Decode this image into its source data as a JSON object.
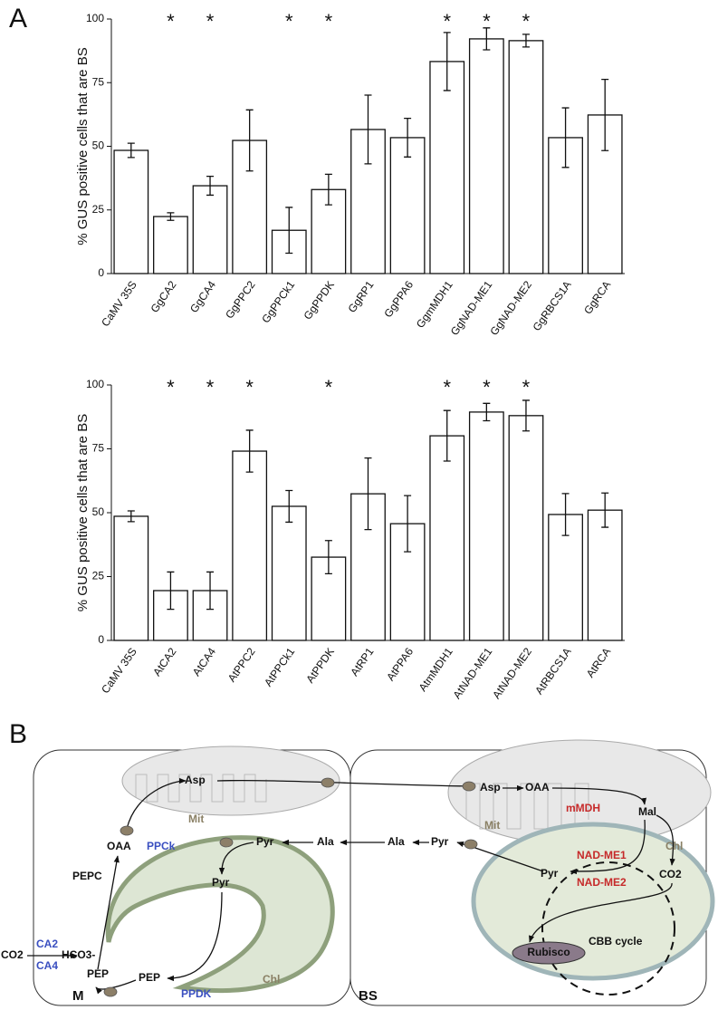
{
  "chart_data": [
    {
      "type": "bar",
      "panel": "A",
      "ylabel": "% GUS positive cells that are BS",
      "categories": [
        "CaMV 35S",
        "GgCA2",
        "GgCA4",
        "GgPPC2",
        "GgPPCk1",
        "GgPPDK",
        "GgRP1",
        "GgPPA6",
        "GgmMDH1",
        "GgNAD-ME1",
        "GgNAD-ME2",
        "GgRBCS1A",
        "GgRCA"
      ],
      "values": [
        48.4,
        22.4,
        34.5,
        52.3,
        17,
        33,
        56.6,
        53.4,
        83.3,
        92.2,
        91.5,
        53.4,
        62.3
      ],
      "errors": [
        2.8,
        1.5,
        3.7,
        12,
        9,
        6,
        13.5,
        7.6,
        11.4,
        4.3,
        2.5,
        11.7,
        14
      ],
      "significance": [
        null,
        "*",
        "*",
        null,
        "*",
        "*",
        null,
        null,
        "*",
        "*",
        "*",
        null,
        null
      ],
      "color": "#ffffff",
      "ylim": [
        0,
        100
      ],
      "yticks": [
        0,
        25,
        50,
        75,
        100
      ]
    },
    {
      "type": "bar",
      "ylabel": "% GUS positive cells that are BS",
      "categories": [
        "CaMV 35S",
        "AtCA2",
        "AtCA4",
        "AtPPC2",
        "AtPPCk1",
        "AtPPDK",
        "AtRP1",
        "AtPPA6",
        "AtmMDH1",
        "AtNAD-ME1",
        "AtNAD-ME2",
        "AtRBCS1A",
        "AtRCA"
      ],
      "values": [
        48.6,
        19.5,
        19.5,
        74.1,
        52.5,
        32.6,
        57.4,
        45.7,
        80.1,
        89.4,
        88,
        49.3,
        51
      ],
      "errors": [
        2.1,
        7.3,
        7.3,
        8.2,
        6.2,
        6.5,
        14,
        11,
        9.9,
        3.4,
        6,
        8.2,
        6.7
      ],
      "significance": [
        null,
        "*",
        "*",
        "*",
        null,
        "*",
        null,
        null,
        "*",
        "*",
        "*",
        null,
        null
      ],
      "color": "#ffffff",
      "ylim": [
        0,
        100
      ],
      "yticks": [
        0,
        25,
        50,
        75,
        100
      ]
    }
  ],
  "diagram": {
    "panel": "B",
    "labels": [
      "Asp",
      "Mit",
      "OAA",
      "PEPC",
      "PPCk",
      "Pyr",
      "Ala",
      "Ala",
      "Pyr",
      "CO2",
      "CA2",
      "CA4",
      "HCO3-",
      "PEP",
      "PEP",
      "Pyr",
      "PPDK",
      "Chl",
      "M",
      "BS",
      "Asp",
      "OAA",
      "mMDH",
      "Mal",
      "Mit",
      "NAD-ME1",
      "Pyr",
      "NAD-ME2",
      "CO2",
      "Chl",
      "Rubisco",
      "CBB cycle"
    ]
  }
}
